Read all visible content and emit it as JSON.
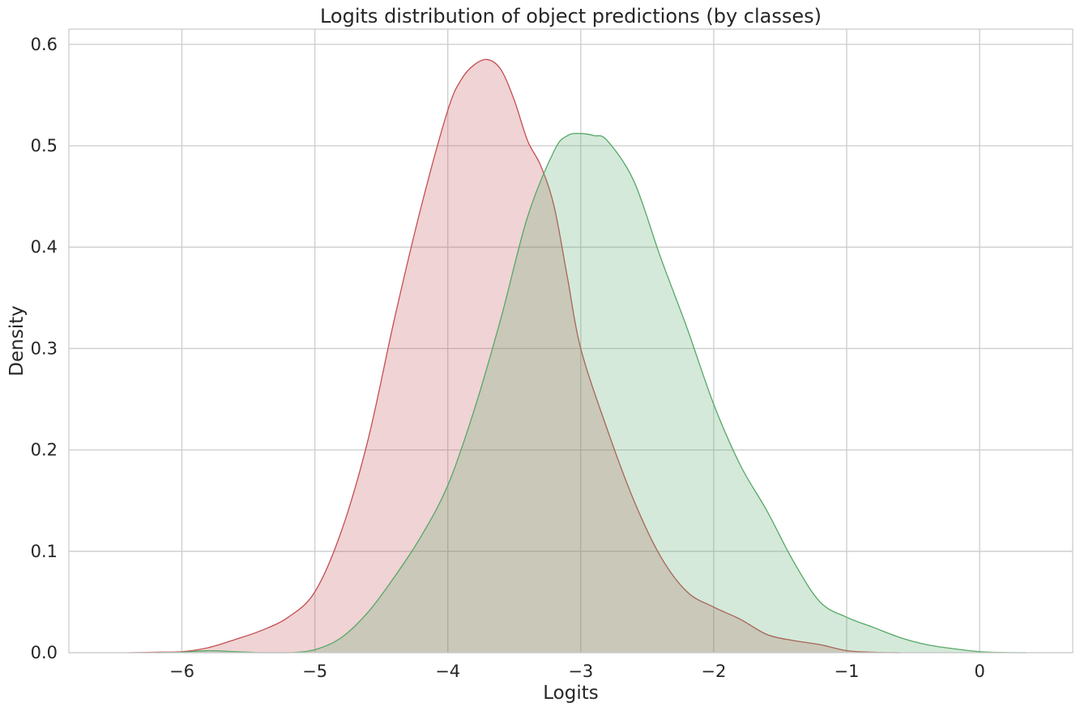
{
  "chart_data": {
    "type": "area",
    "title": "Logits distribution of object predictions (by classes)",
    "xlabel": "Logits",
    "ylabel": "Density",
    "xlim": [
      -6.85,
      0.7
    ],
    "ylim": [
      0,
      0.615
    ],
    "grid": true,
    "x_ticks": [
      {
        "value": -6,
        "label": "−6"
      },
      {
        "value": -5,
        "label": "−5"
      },
      {
        "value": -4,
        "label": "−4"
      },
      {
        "value": -3,
        "label": "−3"
      },
      {
        "value": -2,
        "label": "−2"
      },
      {
        "value": -1,
        "label": "−1"
      },
      {
        "value": 0,
        "label": "0"
      }
    ],
    "y_ticks": [
      {
        "value": 0.0,
        "label": "0.0"
      },
      {
        "value": 0.1,
        "label": "0.1"
      },
      {
        "value": 0.2,
        "label": "0.2"
      },
      {
        "value": 0.3,
        "label": "0.3"
      },
      {
        "value": 0.4,
        "label": "0.4"
      },
      {
        "value": 0.5,
        "label": "0.5"
      },
      {
        "value": 0.6,
        "label": "0.6"
      }
    ],
    "series": [
      {
        "line_color": "#c44e52",
        "fill_color": "#c44e52",
        "fill_opacity": 0.25,
        "x": [
          -6.4,
          -6.2,
          -6.0,
          -5.8,
          -5.6,
          -5.4,
          -5.2,
          -5.0,
          -4.8,
          -4.6,
          -4.4,
          -4.2,
          -4.0,
          -3.9,
          -3.8,
          -3.7,
          -3.6,
          -3.5,
          -3.4,
          -3.3,
          -3.2,
          -3.1,
          -3.0,
          -2.8,
          -2.6,
          -2.4,
          -2.2,
          -2.0,
          -1.8,
          -1.6,
          -1.4,
          -1.2,
          -1.0,
          -0.8,
          -0.6
        ],
        "y": [
          0.0,
          0.0005,
          0.001,
          0.005,
          0.013,
          0.022,
          0.035,
          0.06,
          0.12,
          0.21,
          0.33,
          0.44,
          0.535,
          0.565,
          0.58,
          0.585,
          0.575,
          0.545,
          0.505,
          0.48,
          0.44,
          0.37,
          0.3,
          0.22,
          0.15,
          0.095,
          0.06,
          0.045,
          0.033,
          0.018,
          0.012,
          0.008,
          0.002,
          0.0005,
          0.0
        ]
      },
      {
        "line_color": "#55a868",
        "fill_color": "#55a868",
        "fill_opacity": 0.25,
        "x": [
          -6.2,
          -6.0,
          -5.8,
          -5.6,
          -5.4,
          -5.2,
          -5.0,
          -4.8,
          -4.6,
          -4.4,
          -4.2,
          -4.0,
          -3.8,
          -3.6,
          -3.4,
          -3.2,
          -3.1,
          -3.0,
          -2.9,
          -2.8,
          -2.6,
          -2.4,
          -2.2,
          -2.0,
          -1.8,
          -1.6,
          -1.4,
          -1.2,
          -1.0,
          -0.8,
          -0.6,
          -0.4,
          -0.2,
          0.0,
          0.2,
          0.35
        ],
        "y": [
          0.0,
          0.0005,
          0.002,
          0.001,
          0.0,
          0.0,
          0.003,
          0.015,
          0.04,
          0.075,
          0.115,
          0.165,
          0.24,
          0.33,
          0.43,
          0.495,
          0.51,
          0.512,
          0.51,
          0.505,
          0.465,
          0.39,
          0.32,
          0.245,
          0.185,
          0.14,
          0.09,
          0.05,
          0.035,
          0.025,
          0.015,
          0.008,
          0.004,
          0.001,
          0.0002,
          0.0
        ]
      }
    ]
  }
}
